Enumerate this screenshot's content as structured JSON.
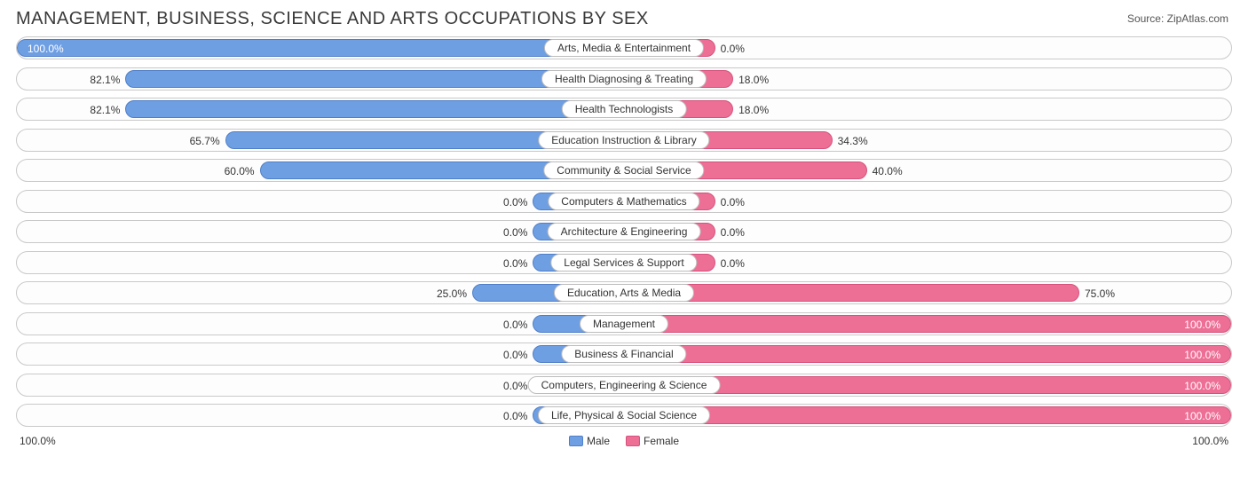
{
  "title": "MANAGEMENT, BUSINESS, SCIENCE AND ARTS OCCUPATIONS BY SEX",
  "source_prefix": "Source: ",
  "source_name": "ZipAtlas.com",
  "colors": {
    "male_fill": "#6f9fe3",
    "male_border": "#4f7ec7",
    "female_fill": "#ed6f96",
    "female_border": "#d6517c",
    "track_border": "#c9c9c9",
    "label_border": "#bdbdbd"
  },
  "min_bar_pct": 15,
  "axis": {
    "left": "100.0%",
    "right": "100.0%"
  },
  "legend": {
    "male": "Male",
    "female": "Female"
  },
  "rows": [
    {
      "label": "Arts, Media & Entertainment",
      "male": 100.0,
      "female": 0.0
    },
    {
      "label": "Health Diagnosing & Treating",
      "male": 82.1,
      "female": 18.0
    },
    {
      "label": "Health Technologists",
      "male": 82.1,
      "female": 18.0
    },
    {
      "label": "Education Instruction & Library",
      "male": 65.7,
      "female": 34.3
    },
    {
      "label": "Community & Social Service",
      "male": 60.0,
      "female": 40.0
    },
    {
      "label": "Computers & Mathematics",
      "male": 0.0,
      "female": 0.0
    },
    {
      "label": "Architecture & Engineering",
      "male": 0.0,
      "female": 0.0
    },
    {
      "label": "Legal Services & Support",
      "male": 0.0,
      "female": 0.0
    },
    {
      "label": "Education, Arts & Media",
      "male": 25.0,
      "female": 75.0
    },
    {
      "label": "Management",
      "male": 0.0,
      "female": 100.0
    },
    {
      "label": "Business & Financial",
      "male": 0.0,
      "female": 100.0
    },
    {
      "label": "Computers, Engineering & Science",
      "male": 0.0,
      "female": 100.0
    },
    {
      "label": "Life, Physical & Social Science",
      "male": 0.0,
      "female": 100.0
    }
  ]
}
